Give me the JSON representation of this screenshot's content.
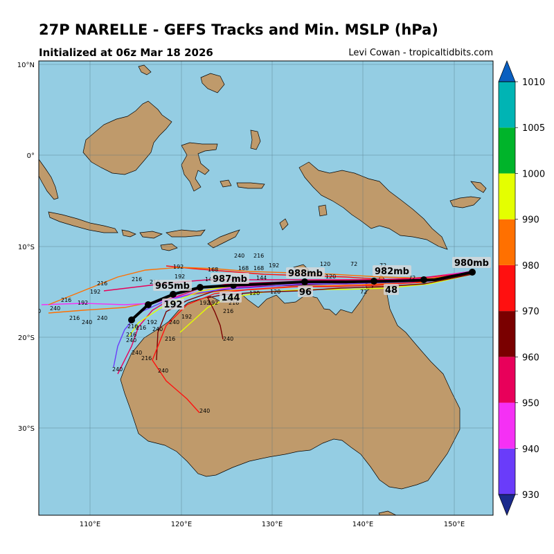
{
  "header": {
    "title": "27P NARELLE - GEFS Tracks and Min. MSLP (hPa)",
    "initialized": "Initialized at 06z Mar 18 2026",
    "credit": "Levi Cowan - tropicaltidbits.com"
  },
  "map": {
    "ocean_color": "#94cde3",
    "land_color": "#bf9a6b",
    "lat_ticks": [
      "10°N",
      "0°",
      "10°S",
      "20°S",
      "30°S"
    ],
    "lon_ticks": [
      "110°E",
      "120°E",
      "130°E",
      "140°E",
      "150°E"
    ]
  },
  "colorbar": {
    "labels": [
      "930",
      "940",
      "950",
      "960",
      "970",
      "980",
      "990",
      "1000",
      "1005",
      "1010"
    ],
    "colors": [
      "#1b2a8c",
      "#6a3cfa",
      "#f530f5",
      "#e8005a",
      "#7a0000",
      "#ff1010",
      "#ff7000",
      "#e4ff00",
      "#00b42a",
      "#00b4b4",
      "#0a5fc0"
    ]
  },
  "mean_track": {
    "pressure_labels": [
      "980mb",
      "982mb",
      "988mb",
      "987mb",
      "965mb"
    ],
    "hour_labels": [
      "48",
      "96",
      "144",
      "192"
    ]
  },
  "member_hour_labels": [
    "72",
    "120",
    "144",
    "168",
    "192",
    "216",
    "240"
  ]
}
